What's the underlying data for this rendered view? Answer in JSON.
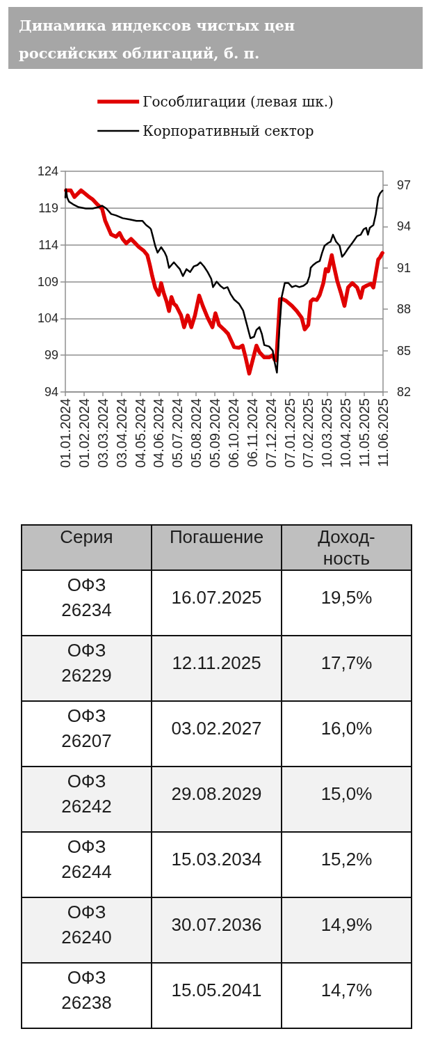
{
  "chart_data": [
    {
      "type": "line",
      "title": "Динамика индексов чистых цен российских облигаций, б. п.",
      "legend": "top",
      "grid": "y",
      "xlim": [
        "2024-01-01",
        "2025-06-11"
      ],
      "xticks": [
        {
          "value": "2024-01-01",
          "label": "01.01.2024"
        },
        {
          "value": "2024-02-01",
          "label": "01.02.2024"
        },
        {
          "value": "2024-03-03",
          "label": "03.03.2024"
        },
        {
          "value": "2024-04-03",
          "label": "03.04.2024"
        },
        {
          "value": "2024-05-04",
          "label": "04.05.2024"
        },
        {
          "value": "2024-06-04",
          "label": "04.06.2024"
        },
        {
          "value": "2024-07-05",
          "label": "05.07.2024"
        },
        {
          "value": "2024-08-05",
          "label": "05.08.2024"
        },
        {
          "value": "2024-09-05",
          "label": "05.09.2024"
        },
        {
          "value": "2024-10-06",
          "label": "06.10.2024"
        },
        {
          "value": "2024-11-06",
          "label": "06.11.2024"
        },
        {
          "value": "2024-12-07",
          "label": "07.12.2024"
        },
        {
          "value": "2025-01-07",
          "label": "07.01.2025"
        },
        {
          "value": "2025-02-07",
          "label": "07.02.2025"
        },
        {
          "value": "2025-03-10",
          "label": "10.03.2025"
        },
        {
          "value": "2025-04-10",
          "label": "10.04.2025"
        },
        {
          "value": "2025-05-11",
          "label": "11.05.2025"
        },
        {
          "value": "2025-06-11",
          "label": "11.06.2025"
        }
      ],
      "ylim": [
        94,
        124
      ],
      "yticks": [
        94,
        99,
        104,
        109,
        114,
        119,
        124
      ],
      "y2lim": [
        82,
        98
      ],
      "y2ticks": [
        82,
        85,
        88,
        91,
        94,
        97
      ],
      "series": [
        {
          "name": "Гособлигации (левая шк.)",
          "color": "#e00000",
          "x": [
            "2024-01-02",
            "2024-01-10",
            "2024-01-16",
            "2024-01-27",
            "2024-02-08",
            "2024-02-15",
            "2024-02-23",
            "2024-03-02",
            "2024-03-07",
            "2024-03-17",
            "2024-03-25",
            "2024-03-31",
            "2024-04-05",
            "2024-04-11",
            "2024-04-19",
            "2024-04-25",
            "2024-05-02",
            "2024-05-10",
            "2024-05-16",
            "2024-05-20",
            "2024-05-24",
            "2024-05-29",
            "2024-06-04",
            "2024-06-08",
            "2024-06-12",
            "2024-06-17",
            "2024-06-21",
            "2024-06-25",
            "2024-06-29",
            "2024-07-03",
            "2024-07-11",
            "2024-07-16",
            "2024-07-22",
            "2024-07-28",
            "2024-08-03",
            "2024-08-10",
            "2024-08-16",
            "2024-08-24",
            "2024-09-01",
            "2024-09-06",
            "2024-09-12",
            "2024-09-20",
            "2024-09-27",
            "2024-10-07",
            "2024-10-15",
            "2024-10-21",
            "2024-10-26",
            "2024-11-01",
            "2024-11-07",
            "2024-11-13",
            "2024-11-18",
            "2024-11-26",
            "2024-12-04",
            "2024-12-10",
            "2024-12-13",
            "2024-12-16",
            "2024-12-19",
            "2024-12-22",
            "2024-12-27",
            "2025-01-01",
            "2025-01-11",
            "2025-01-19",
            "2025-01-27",
            "2025-02-01",
            "2025-02-07",
            "2025-02-11",
            "2025-02-15",
            "2025-02-21",
            "2025-02-26",
            "2025-03-04",
            "2025-03-08",
            "2025-03-12",
            "2025-03-18",
            "2025-03-21",
            "2025-03-27",
            "2025-04-02",
            "2025-04-08",
            "2025-04-14",
            "2025-04-21",
            "2025-04-29",
            "2025-05-05",
            "2025-05-09",
            "2025-05-16",
            "2025-05-22",
            "2025-05-26",
            "2025-05-30",
            "2025-06-03",
            "2025-06-06",
            "2025-06-10"
          ],
          "values": [
            121.4,
            121.4,
            120.5,
            121.4,
            120.6,
            120.2,
            119.5,
            118.9,
            117.3,
            115.4,
            115.1,
            115.6,
            114.8,
            114.2,
            114.8,
            114.3,
            113.7,
            113.2,
            112.6,
            111.3,
            109.8,
            108.2,
            107.2,
            108.8,
            107.5,
            106.3,
            105.0,
            106.9,
            106.0,
            105.7,
            104.4,
            102.8,
            104.4,
            102.8,
            104.4,
            107.1,
            105.7,
            104.1,
            102.8,
            104.7,
            103.1,
            102.5,
            101.9,
            100.1,
            100.0,
            100.3,
            98.7,
            96.5,
            98.4,
            100.3,
            99.4,
            98.7,
            98.7,
            99.0,
            98.4,
            98.3,
            102.5,
            106.6,
            106.6,
            106.4,
            105.7,
            105.0,
            104.1,
            102.5,
            103.1,
            106.3,
            106.6,
            106.5,
            107.2,
            108.8,
            110.7,
            110.4,
            112.6,
            111.3,
            109.1,
            107.5,
            105.7,
            108.2,
            108.8,
            108.2,
            106.8,
            108.2,
            108.5,
            108.7,
            108.2,
            110.1,
            112.0,
            112.3,
            112.9
          ]
        },
        {
          "name": "Корпоративный сектор",
          "color": "#000000",
          "axis": "y2",
          "x": [
            "2024-01-01",
            "2024-01-02",
            "2024-01-04",
            "2024-01-07",
            "2024-01-14",
            "2024-01-23",
            "2024-02-04",
            "2024-02-15",
            "2024-02-25",
            "2024-03-02",
            "2024-03-09",
            "2024-03-17",
            "2024-03-25",
            "2024-04-05",
            "2024-04-17",
            "2024-04-28",
            "2024-05-08",
            "2024-05-14",
            "2024-05-20",
            "2024-05-22",
            "2024-05-25",
            "2024-05-29",
            "2024-06-02",
            "2024-06-08",
            "2024-06-14",
            "2024-06-17",
            "2024-06-21",
            "2024-06-25",
            "2024-06-29",
            "2024-07-03",
            "2024-07-09",
            "2024-07-14",
            "2024-07-20",
            "2024-07-26",
            "2024-08-01",
            "2024-08-07",
            "2024-08-12",
            "2024-08-18",
            "2024-08-24",
            "2024-08-30",
            "2024-09-02",
            "2024-09-08",
            "2024-09-14",
            "2024-09-20",
            "2024-09-26",
            "2024-10-01",
            "2024-10-07",
            "2024-10-15",
            "2024-10-22",
            "2024-10-28",
            "2024-11-03",
            "2024-11-09",
            "2024-11-13",
            "2024-11-18",
            "2024-11-22",
            "2024-11-26",
            "2024-12-04",
            "2024-12-10",
            "2024-12-13",
            "2024-12-17",
            "2024-12-21",
            "2024-12-25",
            "2024-12-30",
            "2025-01-05",
            "2025-01-11",
            "2025-01-17",
            "2025-01-23",
            "2025-01-30",
            "2025-02-05",
            "2025-02-09",
            "2025-02-11",
            "2025-02-15",
            "2025-02-21",
            "2025-02-26",
            "2025-03-02",
            "2025-03-06",
            "2025-03-12",
            "2025-03-16",
            "2025-03-20",
            "2025-03-25",
            "2025-03-31",
            "2025-04-04",
            "2025-04-08",
            "2025-04-14",
            "2025-04-21",
            "2025-04-29",
            "2025-05-05",
            "2025-05-10",
            "2025-05-14",
            "2025-05-17",
            "2025-05-20",
            "2025-05-26",
            "2025-05-30",
            "2025-06-03",
            "2025-06-06",
            "2025-06-10"
          ],
          "values": [
            96.1,
            96.7,
            96.1,
            95.8,
            95.6,
            95.4,
            95.3,
            95.3,
            95.4,
            95.5,
            95.3,
            94.9,
            94.8,
            94.6,
            94.5,
            94.4,
            94.4,
            94.1,
            93.9,
            93.8,
            93.3,
            92.6,
            92.1,
            92.5,
            92.1,
            91.8,
            91.0,
            91.2,
            91.4,
            91.2,
            90.9,
            90.4,
            90.9,
            90.7,
            91.1,
            91.2,
            91.4,
            91.1,
            90.7,
            90.2,
            89.6,
            90.0,
            89.7,
            89.5,
            89.6,
            89.1,
            88.7,
            88.4,
            87.9,
            86.9,
            85.9,
            86.0,
            86.5,
            86.7,
            86.2,
            85.4,
            85.3,
            85.0,
            84.2,
            83.4,
            86.5,
            88.9,
            89.9,
            89.9,
            89.6,
            89.7,
            89.6,
            89.7,
            89.9,
            90.4,
            91.0,
            91.2,
            91.4,
            91.5,
            92.1,
            92.6,
            92.8,
            92.9,
            93.4,
            92.9,
            92.6,
            91.8,
            92.0,
            92.4,
            92.8,
            93.3,
            93.4,
            93.8,
            93.9,
            93.4,
            93.9,
            94.1,
            94.9,
            96.1,
            96.4,
            96.6
          ]
        }
      ]
    },
    {
      "type": "other",
      "ylabel": "Серия",
      "y2label": "Погашение",
      "categories": [
        "ОФЗ 26234",
        "ОФЗ 26229",
        "ОФЗ 26207",
        "ОФЗ 26242",
        "ОФЗ 26244",
        "ОФЗ 26240",
        "ОФЗ 26238"
      ],
      "y2_categories": [
        "16.07.2025",
        "12.11.2025",
        "03.02.2027",
        "29.08.2029",
        "15.03.2034",
        "30.07.2036",
        "15.05.2041"
      ],
      "series": [
        {
          "name": "Доход-ность",
          "values": [
            19.5,
            17.7,
            16.0,
            15.0,
            15.2,
            14.9,
            14.7
          ],
          "value_labels": [
            "19,5%",
            "17,7%",
            "16,0%",
            "15,0%",
            "15,2%",
            "14,9%",
            "14,7%"
          ]
        }
      ]
    }
  ]
}
